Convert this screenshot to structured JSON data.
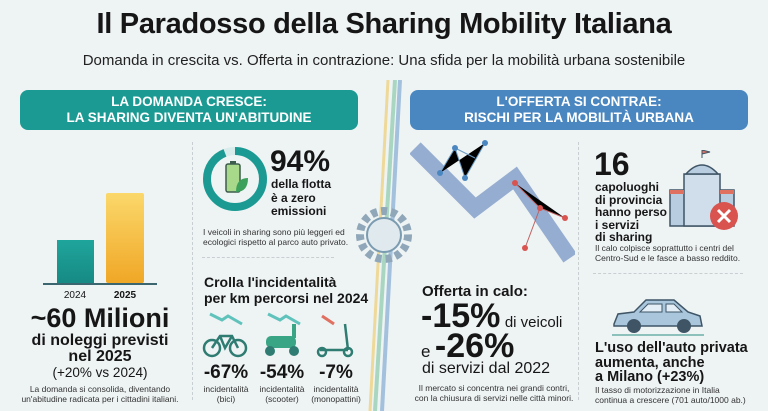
{
  "title": "Il Paradosso della Sharing Mobility Italiana",
  "subtitle": "Domanda in crescita vs. Offerta in contrazione: Una sfida per la mobilità urbana sostenibile",
  "colors": {
    "teal": "#1b9a93",
    "blue": "#4a87c1",
    "gold": "#f2b630",
    "red": "#d9534f"
  },
  "left": {
    "header": [
      "LA DOMANDA CRESCE:",
      "LA SHARING DIVENTA UN'ABITUDINE"
    ],
    "bars": {
      "categories": [
        "2024",
        "2025"
      ]
    },
    "headline": "~60 Milioni",
    "lines": [
      "di noleggi previsti",
      "nel 2025"
    ],
    "growth": "(+20% vs 2024)",
    "note": [
      "La domanda si consolida, diventando",
      "un'abitudine radicata per i cittadini italiani."
    ],
    "fleet": {
      "value": "94%",
      "fraction": 0.94,
      "lines": [
        "della flotta",
        "è a zero",
        "emissioni"
      ],
      "note": [
        "I veicoli in sharing sono più leggeri ed",
        "ecologici rispetto al parco auto privato."
      ]
    },
    "accidents": {
      "title": [
        "Crolla l'incidentalità",
        "per km percorsi nel 2024"
      ],
      "items": [
        {
          "icon": "bicycle-icon",
          "value": "-67%",
          "label": "incidentalità",
          "type": "(bici)"
        },
        {
          "icon": "scooter-icon",
          "value": "-54%",
          "label": "incidentalità",
          "type": "(scooter)"
        },
        {
          "icon": "kick-scooter-icon",
          "value": "-7%",
          "label": "incidentalità",
          "type": "(monopattini)"
        }
      ]
    }
  },
  "right": {
    "header": [
      "L'OFFERTA SI CONTRAE:",
      "RISCHI PER LA MOBILITÀ URBANA"
    ],
    "cities": {
      "value": "16",
      "lines": [
        "capoluoghi",
        "di provincia",
        "hanno perso",
        "i servizi",
        "di sharing"
      ],
      "note": [
        "Il calo colpisce soprattutto i centri del",
        "Centro-Sud e le fasce a basso reddito."
      ]
    },
    "offer": {
      "title": "Offerta in calo:",
      "v1": "-15%",
      "v1_label": "di veicoli",
      "conj": "e",
      "v2": "-26%",
      "v2_label": "di servizi dal 2022",
      "note": [
        "Il mercato si concentra nei grandi contri,",
        "con la chiusura di servizi nelle città minori."
      ]
    },
    "car": {
      "lines": [
        "L'uso dell'auto privata",
        "aumenta, anche",
        "a Milano (+23%)"
      ],
      "note": [
        "Il tasso di motorizzazione in Italia",
        "continua a crescere (701 auto/1000 ab.)"
      ]
    }
  }
}
